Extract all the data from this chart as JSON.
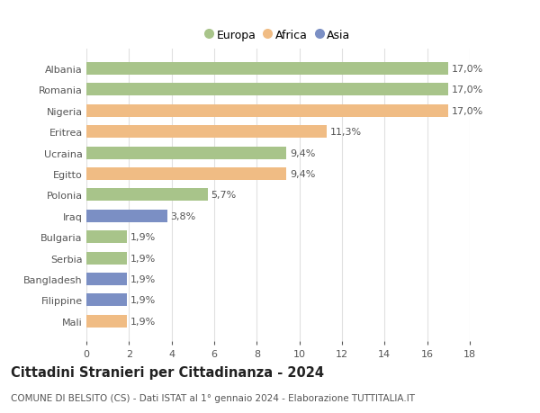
{
  "countries": [
    "Albania",
    "Romania",
    "Nigeria",
    "Eritrea",
    "Ucraina",
    "Egitto",
    "Polonia",
    "Iraq",
    "Bulgaria",
    "Serbia",
    "Bangladesh",
    "Filippine",
    "Mali"
  ],
  "values": [
    17.0,
    17.0,
    17.0,
    11.3,
    9.4,
    9.4,
    5.7,
    3.8,
    1.9,
    1.9,
    1.9,
    1.9,
    1.9
  ],
  "labels": [
    "17,0%",
    "17,0%",
    "17,0%",
    "11,3%",
    "9,4%",
    "9,4%",
    "5,7%",
    "3,8%",
    "1,9%",
    "1,9%",
    "1,9%",
    "1,9%",
    "1,9%"
  ],
  "continents": [
    "Europa",
    "Europa",
    "Africa",
    "Africa",
    "Europa",
    "Africa",
    "Europa",
    "Asia",
    "Europa",
    "Europa",
    "Asia",
    "Asia",
    "Africa"
  ],
  "colors": {
    "Europa": "#a8c48a",
    "Africa": "#f0bc84",
    "Asia": "#7b8fc4"
  },
  "legend_labels": [
    "Europa",
    "Africa",
    "Asia"
  ],
  "legend_colors": [
    "#a8c48a",
    "#f0bc84",
    "#7b8fc4"
  ],
  "title": "Cittadini Stranieri per Cittadinanza - 2024",
  "subtitle": "COMUNE DI BELSITO (CS) - Dati ISTAT al 1° gennaio 2024 - Elaborazione TUTTITALIA.IT",
  "xlim": [
    0,
    18
  ],
  "xticks": [
    0,
    2,
    4,
    6,
    8,
    10,
    12,
    14,
    16,
    18
  ],
  "background_color": "#ffffff",
  "grid_color": "#e0e0e0",
  "title_fontsize": 10.5,
  "subtitle_fontsize": 7.5,
  "label_fontsize": 8,
  "tick_fontsize": 8
}
